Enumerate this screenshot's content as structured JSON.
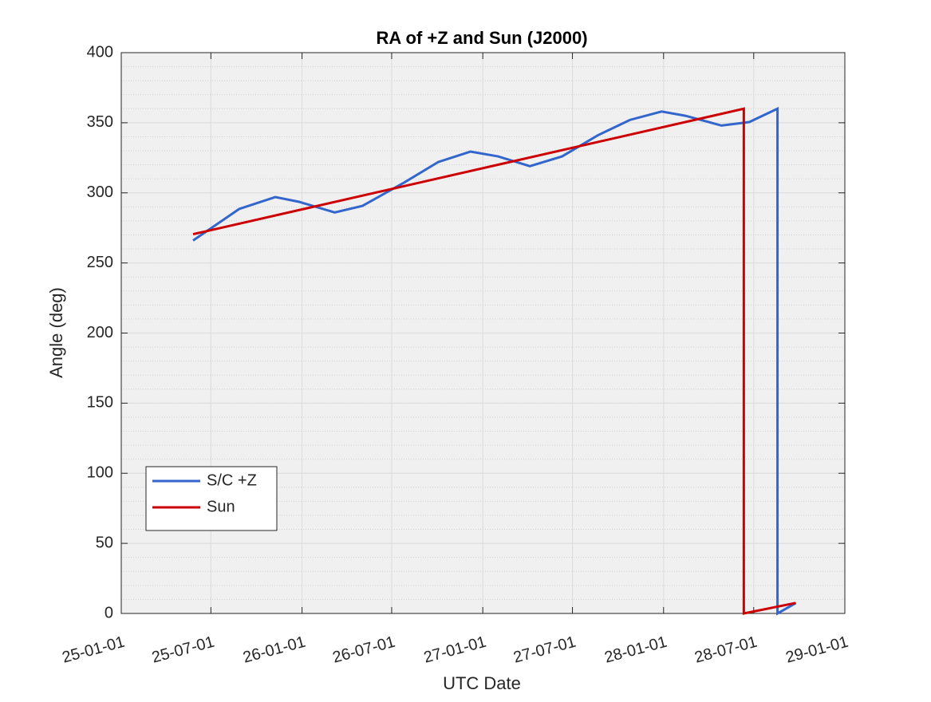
{
  "chart_data": {
    "type": "line",
    "title": "RA of +Z and Sun (J2000)",
    "x_label": "UTC Date",
    "y_label": "Angle (deg)",
    "series": [
      {
        "name": "S/C +Z",
        "color": "#3366cc",
        "x": [
          "2025-05-26",
          "2025-08-27",
          "2025-11-08",
          "2025-12-26",
          "2026-03-08",
          "2026-05-03",
          "2026-07-23",
          "2026-10-03",
          "2026-12-07",
          "2027-02-01",
          "2027-04-06",
          "2027-06-10",
          "2027-08-21",
          "2027-10-25",
          "2027-12-28",
          "2028-02-14",
          "2028-04-27",
          "2028-06-22",
          "2028-08-18",
          "2028-08-18",
          "2028-09-24"
        ],
        "values": [
          266,
          288.5,
          297,
          293.6,
          286,
          290.7,
          306.7,
          322,
          329.4,
          326,
          319,
          326,
          341,
          352,
          358,
          355,
          348,
          350.5,
          360,
          0,
          7.4
        ]
      },
      {
        "name": "Sun",
        "color": "#cc0000",
        "x": [
          "2025-05-26",
          "2028-06-11",
          "2028-06-11",
          "2028-09-24"
        ],
        "values": [
          270.5,
          360,
          0,
          7.5
        ]
      }
    ],
    "xlim": [
      "2025-01-01",
      "2029-01-01"
    ],
    "xticks": [
      {
        "value": "2025-01-01",
        "label": "25-01-01"
      },
      {
        "value": "2025-07-01",
        "label": "25-07-01"
      },
      {
        "value": "2026-01-01",
        "label": "26-01-01"
      },
      {
        "value": "2026-07-01",
        "label": "26-07-01"
      },
      {
        "value": "2027-01-01",
        "label": "27-01-01"
      },
      {
        "value": "2027-07-01",
        "label": "27-07-01"
      },
      {
        "value": "2028-01-01",
        "label": "28-01-01"
      },
      {
        "value": "2028-07-01",
        "label": "28-07-01"
      },
      {
        "value": "2029-01-01",
        "label": "29-01-01"
      }
    ],
    "ylim": [
      0,
      400
    ],
    "yticks": [
      0,
      50,
      100,
      150,
      200,
      250,
      300,
      350,
      400
    ],
    "grid": true,
    "minor_grid": true,
    "legend": "lower left"
  }
}
